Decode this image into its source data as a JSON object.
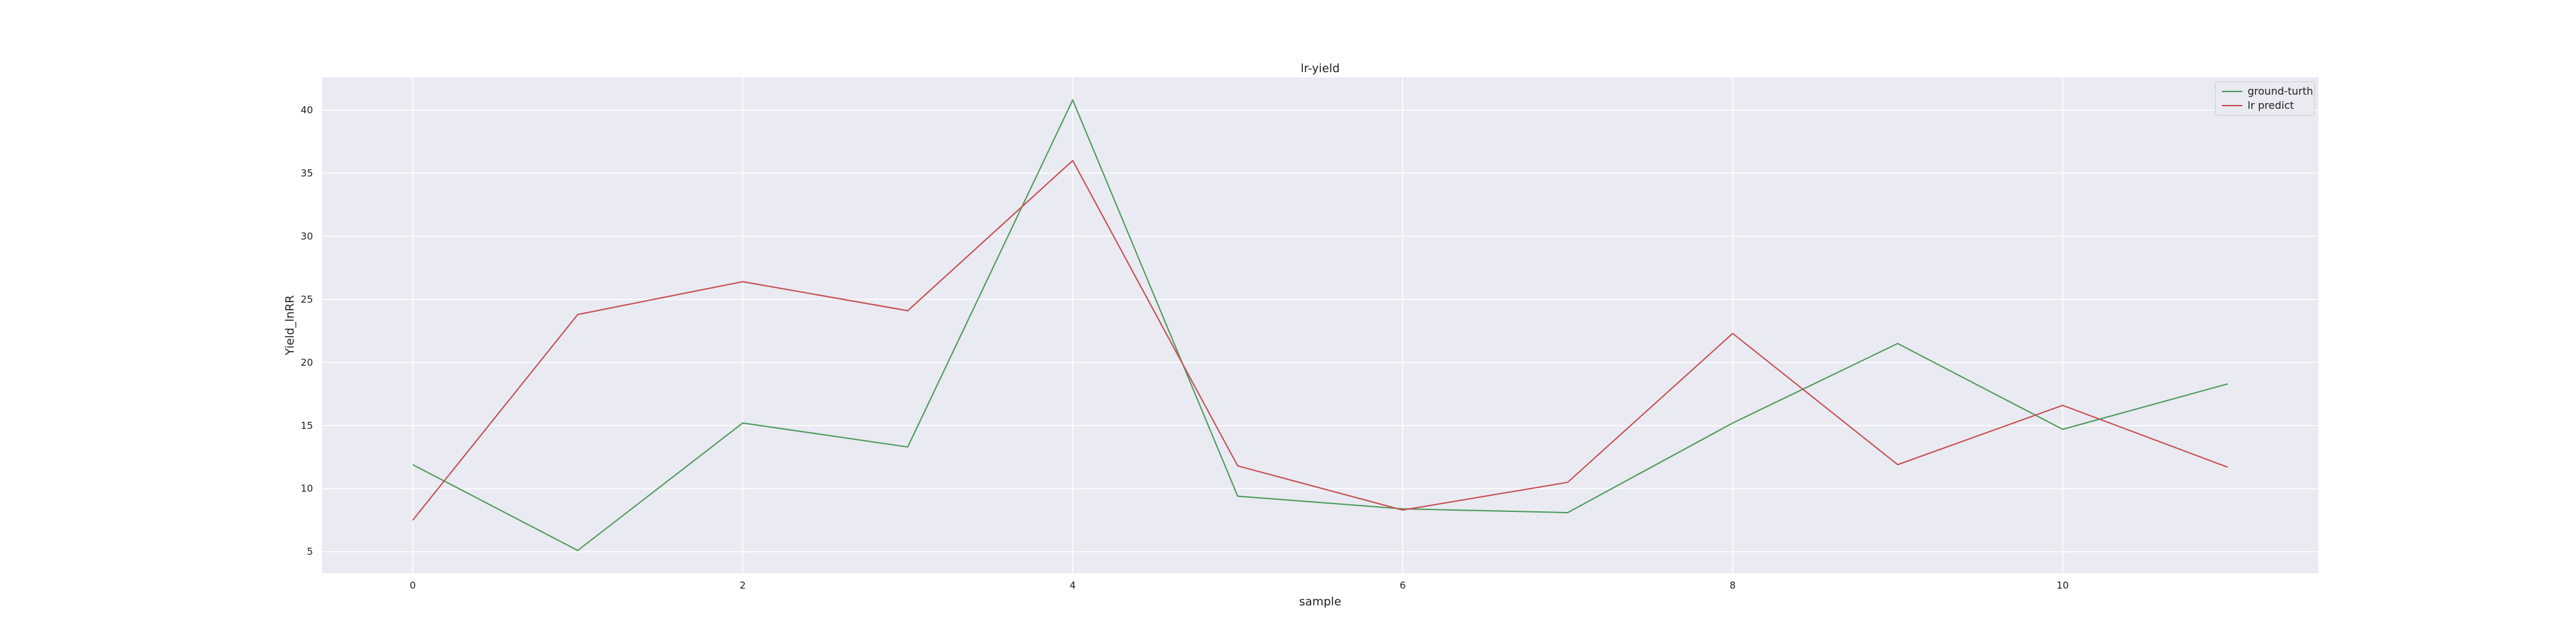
{
  "chart_data": {
    "type": "line",
    "title": "lr-yield",
    "xlabel": "sample",
    "ylabel": "Yield_lnRR",
    "x": [
      0,
      1,
      2,
      3,
      4,
      5,
      6,
      7,
      8,
      9,
      10,
      11
    ],
    "series": [
      {
        "name": "ground-turth",
        "color": "#4c9a5c",
        "values": [
          11.9,
          5.1,
          15.2,
          13.3,
          40.8,
          9.4,
          8.4,
          8.1,
          15.2,
          21.5,
          14.7,
          18.3
        ]
      },
      {
        "name": "lr predict",
        "color": "#c44e52",
        "values": [
          7.5,
          23.8,
          26.4,
          24.1,
          36.0,
          11.8,
          8.3,
          10.5,
          22.3,
          11.9,
          16.6,
          11.7
        ]
      }
    ],
    "xticks": [
      "0",
      "2",
      "4",
      "6",
      "8",
      "10"
    ],
    "yticks": [
      "5",
      "10",
      "15",
      "20",
      "25",
      "30",
      "35",
      "40"
    ],
    "xlim": [
      -0.55,
      11.55
    ],
    "ylim": [
      3.3,
      42.6
    ],
    "grid": true,
    "background": "#eaeaf2",
    "legend_position": "top-right"
  }
}
